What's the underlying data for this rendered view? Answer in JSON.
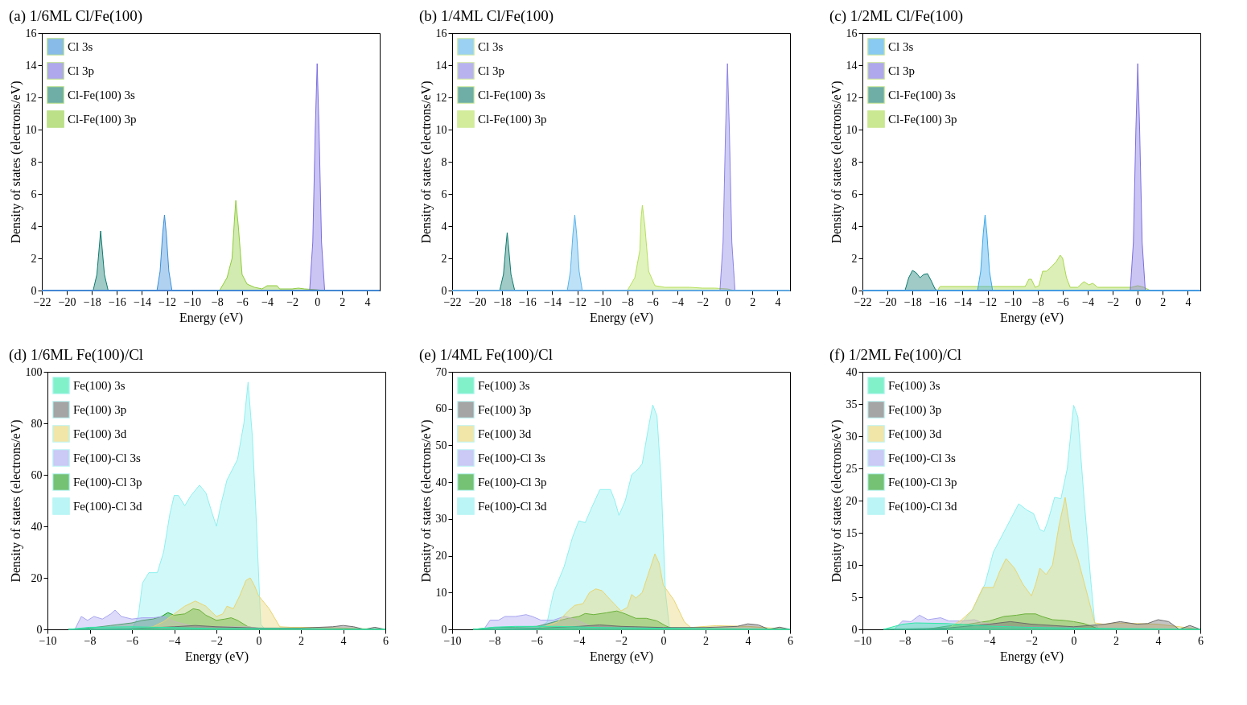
{
  "chart_data": [
    {
      "type": "area",
      "title": "(a) 1/6ML Cl/Fe(100)",
      "xlabel": "Energy (eV)",
      "ylabel": "Density of states (electrons/eV)",
      "xlim": [
        -22,
        5
      ],
      "ylim": [
        0,
        16
      ],
      "xticks": [
        -22,
        -20,
        -18,
        -16,
        -14,
        -12,
        -10,
        -8,
        -6,
        -4,
        -2,
        0,
        2,
        4
      ],
      "yticks": [
        0,
        2,
        4,
        6,
        8,
        10,
        12,
        14,
        16
      ],
      "legend": "top left",
      "series": [
        {
          "name": "Cl 3s",
          "color": "#3a8fd9",
          "x": [
            -22,
            -12.8,
            -12.55,
            -12.35,
            -12.2,
            -12.05,
            -11.85,
            -11.6,
            5
          ],
          "values": [
            0,
            0,
            1.2,
            3.5,
            4.7,
            3.5,
            1.2,
            0,
            0
          ]
        },
        {
          "name": "Cl 3p",
          "color": "#7b6fe0",
          "x": [
            -22,
            -0.6,
            -0.35,
            -0.15,
            0,
            0.15,
            0.35,
            0.6,
            5
          ],
          "values": [
            0,
            0,
            3,
            10,
            14.1,
            10,
            3,
            0,
            0
          ]
        },
        {
          "name": "Cl-Fe(100) 3s",
          "color": "#0e7a6e",
          "x": [
            -22,
            -17.9,
            -17.6,
            -17.4,
            -17.3,
            -17.2,
            -17,
            -16.7,
            5
          ],
          "values": [
            0,
            0,
            1,
            2.8,
            3.7,
            2.8,
            1,
            0,
            0
          ]
        },
        {
          "name": "Cl-Fe(100) 3p",
          "color": "#8fcc3a",
          "x": [
            -19,
            -7.8,
            -7.2,
            -6.8,
            -6.6,
            -6.5,
            -6.3,
            -6,
            -5.6,
            -5,
            -4.4,
            -4,
            -3.2,
            -3,
            -2,
            -1.5,
            -1,
            0,
            0.5,
            5
          ],
          "values": [
            0,
            0,
            0.8,
            2,
            4.5,
            5.6,
            4,
            1,
            0.4,
            0.2,
            0.1,
            0.3,
            0.3,
            0.1,
            0.1,
            0.15,
            0.1,
            0.05,
            0,
            0
          ]
        }
      ]
    },
    {
      "type": "area",
      "title": "(b) 1/4ML Cl/Fe(100)",
      "xlabel": "Energy (eV)",
      "ylabel": "Density of states (electrons/eV)",
      "xlim": [
        -22,
        5
      ],
      "ylim": [
        0,
        16
      ],
      "xticks": [
        -22,
        -20,
        -18,
        -16,
        -14,
        -12,
        -10,
        -8,
        -6,
        -4,
        -2,
        0,
        2,
        4
      ],
      "yticks": [
        0,
        2,
        4,
        6,
        8,
        10,
        12,
        14,
        16
      ],
      "legend": "top left",
      "series": [
        {
          "name": "Cl 3s",
          "color": "#5ab4ea",
          "x": [
            -22,
            -12.8,
            -12.55,
            -12.35,
            -12.2,
            -12.05,
            -11.85,
            -11.6,
            5
          ],
          "values": [
            0,
            0,
            1.2,
            3.5,
            4.7,
            3.5,
            1.2,
            0,
            0
          ]
        },
        {
          "name": "Cl 3p",
          "color": "#8a82e6",
          "x": [
            -22,
            -0.6,
            -0.35,
            -0.15,
            0,
            0.15,
            0.35,
            0.6,
            5
          ],
          "values": [
            0,
            0,
            3,
            10,
            14.1,
            10,
            3,
            0,
            0
          ]
        },
        {
          "name": "Cl-Fe(100) 3s",
          "color": "#0e7a6e",
          "x": [
            -22,
            -18.2,
            -17.9,
            -17.7,
            -17.6,
            -17.5,
            -17.3,
            -17,
            5
          ],
          "values": [
            0,
            0,
            1,
            2.8,
            3.6,
            2.8,
            1,
            0,
            0
          ]
        },
        {
          "name": "Cl-Fe(100) 3p",
          "color": "#b5e05a",
          "x": [
            -19.5,
            -8,
            -7.4,
            -7,
            -6.9,
            -6.8,
            -6.6,
            -6.3,
            -5.8,
            -5,
            -4,
            -3,
            -2,
            -1,
            0,
            0.5,
            5
          ],
          "values": [
            0,
            0,
            0.8,
            2.5,
            4.5,
            5.3,
            4,
            1.2,
            0.3,
            0.2,
            0.2,
            0.2,
            0.15,
            0.15,
            0.1,
            0,
            0
          ]
        }
      ]
    },
    {
      "type": "area",
      "title": "(c) 1/2ML Cl/Fe(100)",
      "xlabel": "Energy (eV)",
      "ylabel": "Density of states (electrons/eV)",
      "xlim": [
        -22,
        5
      ],
      "ylim": [
        0,
        16
      ],
      "xticks": [
        -22,
        -20,
        -18,
        -16,
        -14,
        -12,
        -10,
        -8,
        -6,
        -4,
        -2,
        0,
        2,
        4
      ],
      "yticks": [
        0,
        2,
        4,
        6,
        8,
        10,
        12,
        14,
        16
      ],
      "legend": "top left",
      "series": [
        {
          "name": "Cl 3s",
          "color": "#3aa8ea",
          "x": [
            -22,
            -12.8,
            -12.55,
            -12.35,
            -12.2,
            -12.05,
            -11.85,
            -11.6,
            5
          ],
          "values": [
            0,
            0,
            1.2,
            3.5,
            4.7,
            3.5,
            1.2,
            0,
            0
          ]
        },
        {
          "name": "Cl 3p",
          "color": "#7b6fe0",
          "x": [
            -22,
            -0.6,
            -0.35,
            -0.15,
            0,
            0.15,
            0.35,
            0.6,
            5
          ],
          "values": [
            0,
            0,
            3,
            10,
            14.1,
            10,
            3,
            0,
            0
          ]
        },
        {
          "name": "Cl-Fe(100) 3s",
          "color": "#0e7a6e",
          "x": [
            -22,
            -18.6,
            -18.3,
            -18,
            -17.7,
            -17.4,
            -17.1,
            -16.8,
            -16.5,
            -16.2,
            -16,
            5
          ],
          "values": [
            0,
            0,
            0.8,
            1.25,
            1.1,
            0.8,
            1,
            1.05,
            0.6,
            0.1,
            0,
            0
          ]
        },
        {
          "name": "Cl-Fe(100) 3p",
          "color": "#a8d84a",
          "x": [
            -19.5,
            -16,
            -15.8,
            -9,
            -8.7,
            -8.5,
            -8.2,
            -7.9,
            -7.6,
            -7.3,
            -7,
            -6.5,
            -6.2,
            -6,
            -5.7,
            -5.4,
            -4.8,
            -4.3,
            -3.9,
            -3.6,
            -3.2,
            -2,
            -0.5,
            0,
            0.5,
            1,
            5
          ],
          "values": [
            0,
            0,
            0.25,
            0.25,
            0.7,
            0.7,
            0.2,
            0.3,
            1.2,
            1.2,
            1.4,
            1.8,
            2.2,
            2,
            0.8,
            0.2,
            0.2,
            0.55,
            0.35,
            0.45,
            0.2,
            0.2,
            0.2,
            0.3,
            0.2,
            0,
            0
          ]
        }
      ]
    },
    {
      "type": "area",
      "title": "(d) 1/6ML Fe(100)/Cl",
      "xlabel": "Energy (eV)",
      "ylabel": "Density of states (electrons/eV)",
      "xlim": [
        -10,
        6
      ],
      "ylim": [
        0,
        100
      ],
      "xticks": [
        -10,
        -8,
        -6,
        -4,
        -2,
        0,
        2,
        4,
        6
      ],
      "yticks": [
        0,
        20,
        40,
        60,
        80,
        100
      ],
      "legend": "top left",
      "series": [
        {
          "name": "Fe(100) 3s",
          "color": "#2ee8a8",
          "x": [
            -9,
            -8,
            -6,
            -4,
            -2,
            0,
            1,
            6
          ],
          "values": [
            0,
            0.8,
            1,
            0.7,
            0.3,
            0.3,
            0.3,
            0
          ]
        },
        {
          "name": "Fe(100) 3p",
          "color": "#6b6b6b",
          "x": [
            -9,
            -6,
            -4,
            -3,
            -2,
            0,
            2,
            3.5,
            4,
            4.5,
            5,
            5.5,
            6
          ],
          "values": [
            0,
            0.3,
            1,
            1.5,
            1,
            0.5,
            0.5,
            1,
            1.5,
            1,
            0,
            0.8,
            0
          ]
        },
        {
          "name": "Fe(100) 3d",
          "color": "#e8d570",
          "x": [
            -6,
            -5,
            -4.5,
            -4,
            -3.5,
            -3,
            -2.5,
            -2,
            -1.7,
            -1.5,
            -1.2,
            -0.9,
            -0.6,
            -0.4,
            -0.2,
            0,
            0.5,
            1,
            1.5,
            2,
            4,
            6
          ],
          "values": [
            0,
            1,
            3,
            6,
            9,
            11,
            9,
            5,
            6,
            9,
            8,
            13,
            19,
            20,
            17,
            13,
            8,
            1,
            0.8,
            0.8,
            0.5,
            0
          ]
        },
        {
          "name": "Fe(100)-Cl 3s",
          "color": "#a9a6f0",
          "x": [
            -9,
            -8.7,
            -8.4,
            -8.1,
            -7.8,
            -7.4,
            -7,
            -6.8,
            -6.5,
            -6,
            -5.5,
            -5,
            -4.5,
            -4,
            -3,
            -2,
            -0.5,
            0,
            1,
            6
          ],
          "values": [
            0,
            0,
            5,
            3.5,
            5,
            4,
            6,
            7.5,
            5,
            4,
            4.5,
            4.5,
            5,
            3,
            1,
            1,
            1,
            0.5,
            0,
            0
          ]
        },
        {
          "name": "Fe(100)-Cl 3p",
          "color": "#1a9a1a",
          "x": [
            -9,
            -8,
            -7,
            -6,
            -5.5,
            -5,
            -4.6,
            -4.3,
            -4,
            -3.5,
            -3.1,
            -2.8,
            -2.5,
            -2,
            -1.6,
            -1.3,
            -1,
            -0.5,
            0,
            0.5,
            6
          ],
          "values": [
            0,
            0.5,
            1.5,
            2.5,
            3.5,
            4,
            5,
            6.5,
            5.5,
            6,
            8,
            7.5,
            5.5,
            3.5,
            4,
            4.5,
            3.5,
            1,
            0.3,
            0,
            0
          ]
        },
        {
          "name": "Fe(100)-Cl 3d",
          "color": "#8ef0f0",
          "x": [
            -9,
            -6,
            -5.7,
            -5.5,
            -5.2,
            -4.8,
            -4.5,
            -4.2,
            -4,
            -3.8,
            -3.5,
            -3.2,
            -2.8,
            -2.5,
            -2.2,
            -2,
            -1.8,
            -1.5,
            -1,
            -0.7,
            -0.5,
            -0.3,
            -0.1,
            0.1,
            0.3,
            6
          ],
          "values": [
            0,
            0,
            5,
            18,
            22,
            22,
            30,
            45,
            52,
            52,
            48,
            52,
            56,
            53,
            45,
            40,
            48,
            58,
            66,
            80,
            96,
            75,
            40,
            2,
            0,
            0
          ]
        }
      ]
    },
    {
      "type": "area",
      "title": "(e) 1/4ML Fe(100)/Cl",
      "xlabel": "Energy (eV)",
      "ylabel": "Density of states (electrons/eV)",
      "xlim": [
        -10,
        6
      ],
      "ylim": [
        0,
        70
      ],
      "xticks": [
        -10,
        -8,
        -6,
        -4,
        -2,
        0,
        2,
        4,
        6
      ],
      "yticks": [
        0,
        10,
        20,
        30,
        40,
        50,
        60,
        70
      ],
      "legend": "top left",
      "series": [
        {
          "name": "Fe(100) 3s",
          "color": "#2ee8a8",
          "x": [
            -9,
            -8,
            -7,
            -5,
            -3,
            0,
            6
          ],
          "values": [
            0,
            0.6,
            0.8,
            0.8,
            0.5,
            0.3,
            0
          ]
        },
        {
          "name": "Fe(100) 3p",
          "color": "#6b6b6b",
          "x": [
            -9,
            -6,
            -4,
            -3,
            -2,
            0,
            2,
            3.5,
            4,
            4.5,
            5,
            5.5,
            6
          ],
          "values": [
            0,
            0.3,
            0.8,
            1.2,
            0.8,
            0.5,
            0.5,
            0.8,
            1.5,
            1.2,
            0,
            0.6,
            0
          ]
        },
        {
          "name": "Fe(100) 3d",
          "color": "#e8d570",
          "x": [
            -6,
            -5,
            -4.5,
            -4.2,
            -3.8,
            -3.5,
            -3.2,
            -2.9,
            -2.5,
            -2,
            -1.7,
            -1.5,
            -1.3,
            -1,
            -0.6,
            -0.4,
            -0.2,
            0,
            0.5,
            1,
            1.3,
            2,
            2.5,
            4,
            6
          ],
          "values": [
            0,
            2,
            5,
            6.5,
            7,
            10,
            11,
            10.5,
            8,
            5,
            6,
            9.5,
            8.5,
            10,
            17,
            20.5,
            18,
            12,
            8,
            2,
            0.5,
            0.8,
            1,
            0.8,
            0
          ]
        },
        {
          "name": "Fe(100)-Cl 3s",
          "color": "#a9a6f0",
          "x": [
            -8.5,
            -8.2,
            -7.8,
            -7.5,
            -7,
            -6.5,
            -6.2,
            -5.8,
            -5.2,
            -4.7,
            -4.3,
            -3.5,
            -2,
            0,
            1,
            6
          ],
          "values": [
            0,
            2.5,
            2.5,
            3.5,
            3.5,
            4,
            3.5,
            2.5,
            2.5,
            3.5,
            3,
            1,
            0.5,
            0.5,
            0,
            0
          ]
        },
        {
          "name": "Fe(100)-Cl 3p",
          "color": "#1a9a1a",
          "x": [
            -9,
            -8,
            -7,
            -6,
            -5.5,
            -5,
            -4.5,
            -4,
            -3.7,
            -3.3,
            -2.7,
            -2.2,
            -1.8,
            -1.3,
            -0.8,
            -0.3,
            0.1,
            0.5,
            6
          ],
          "values": [
            0,
            0.5,
            0.6,
            0.8,
            1.5,
            2.3,
            3,
            3.5,
            4.3,
            4,
            4.5,
            5,
            4.2,
            3,
            3,
            2.3,
            1,
            0,
            0
          ]
        },
        {
          "name": "Fe(100)-Cl 3d",
          "color": "#8ef0f0",
          "x": [
            -9,
            -6,
            -5.5,
            -5.2,
            -4.7,
            -4.3,
            -4,
            -3.7,
            -3.4,
            -3,
            -2.5,
            -2.3,
            -2.1,
            -1.8,
            -1.5,
            -1.2,
            -1,
            -0.7,
            -0.5,
            -0.3,
            -0.1,
            0.1,
            0.3,
            6
          ],
          "values": [
            0,
            0,
            2,
            10,
            17,
            25,
            29.5,
            29,
            33,
            38,
            38,
            35,
            31,
            35,
            42,
            43.5,
            45,
            55,
            61,
            58,
            40,
            10,
            0,
            0
          ]
        }
      ]
    },
    {
      "type": "area",
      "title": "(f) 1/2ML Fe(100)/Cl",
      "xlabel": "Energy (eV)",
      "ylabel": "Density of states (electrons/eV)",
      "xlim": [
        -10,
        6
      ],
      "ylim": [
        0,
        40
      ],
      "xticks": [
        -10,
        -8,
        -6,
        -4,
        -2,
        0,
        2,
        4,
        6
      ],
      "yticks": [
        0,
        5,
        10,
        15,
        20,
        25,
        30,
        35,
        40
      ],
      "legend": "top left",
      "series": [
        {
          "name": "Fe(100) 3s",
          "color": "#2ee8a8",
          "x": [
            -9,
            -8.1,
            -7.5,
            -6,
            -4,
            -2,
            0,
            6
          ],
          "values": [
            0,
            0.8,
            1,
            0.9,
            0.5,
            0.3,
            0.2,
            0
          ]
        },
        {
          "name": "Fe(100) 3p",
          "color": "#6b6b6b",
          "x": [
            -9,
            -6,
            -4,
            -3,
            -2,
            0,
            1.5,
            2.2,
            3,
            3.5,
            4,
            4.5,
            5,
            5.5,
            6
          ],
          "values": [
            0,
            0.2,
            0.8,
            1.2,
            0.8,
            0.4,
            0.8,
            1.2,
            0.8,
            0.9,
            1.5,
            1.2,
            0,
            0.6,
            0
          ]
        },
        {
          "name": "Fe(100) 3d",
          "color": "#e8d570",
          "x": [
            -6,
            -5.3,
            -4.8,
            -4.3,
            -3.8,
            -3.5,
            -3.2,
            -2.8,
            -2.4,
            -2,
            -1.8,
            -1.6,
            -1.3,
            -1,
            -0.7,
            -0.4,
            -0.1,
            0.2,
            0.6,
            1,
            1.4,
            2,
            4,
            6
          ],
          "values": [
            0,
            1.5,
            3,
            6.5,
            6.5,
            9,
            11,
            9.5,
            7,
            5.2,
            7,
            9.5,
            8.5,
            10,
            16,
            20.5,
            14,
            11,
            6,
            1,
            0.8,
            1,
            0.8,
            0
          ]
        },
        {
          "name": "Fe(100)-Cl 3s",
          "color": "#a9a6f0",
          "x": [
            -8.5,
            -8.1,
            -7.7,
            -7.3,
            -6.9,
            -6.3,
            -5.9,
            -5.3,
            -4.7,
            -4.3,
            -3,
            0,
            1,
            6
          ],
          "values": [
            0,
            1.3,
            1.2,
            2.2,
            1.5,
            1.8,
            1.3,
            1.3,
            1.5,
            1,
            0.5,
            0.3,
            0,
            0
          ]
        },
        {
          "name": "Fe(100)-Cl 3p",
          "color": "#1a9a1a",
          "x": [
            -7,
            -6,
            -5,
            -4,
            -3.3,
            -2.7,
            -2.3,
            -1.8,
            -1.5,
            -1,
            -0.5,
            0,
            0.5,
            1,
            1.2,
            6
          ],
          "values": [
            0,
            0.5,
            0.8,
            1.3,
            2,
            2.2,
            2.4,
            2.4,
            2,
            1.5,
            1.4,
            1.2,
            0.9,
            0.3,
            0,
            0
          ]
        },
        {
          "name": "Fe(100)-Cl 3d",
          "color": "#8ef0f0",
          "x": [
            -6,
            -5.3,
            -4.8,
            -4.2,
            -3.8,
            -3.4,
            -3,
            -2.6,
            -2.2,
            -1.9,
            -1.6,
            -1.4,
            -1.2,
            -0.9,
            -0.6,
            -0.3,
            0,
            0.2,
            0.5,
            0.8,
            1,
            1.2,
            6
          ],
          "values": [
            0,
            1,
            3,
            7,
            12,
            14.5,
            17,
            19.5,
            18.5,
            18,
            15.5,
            15.2,
            17,
            20.5,
            20.3,
            25,
            34.8,
            33,
            20,
            8,
            1,
            0,
            0
          ]
        }
      ]
    }
  ]
}
